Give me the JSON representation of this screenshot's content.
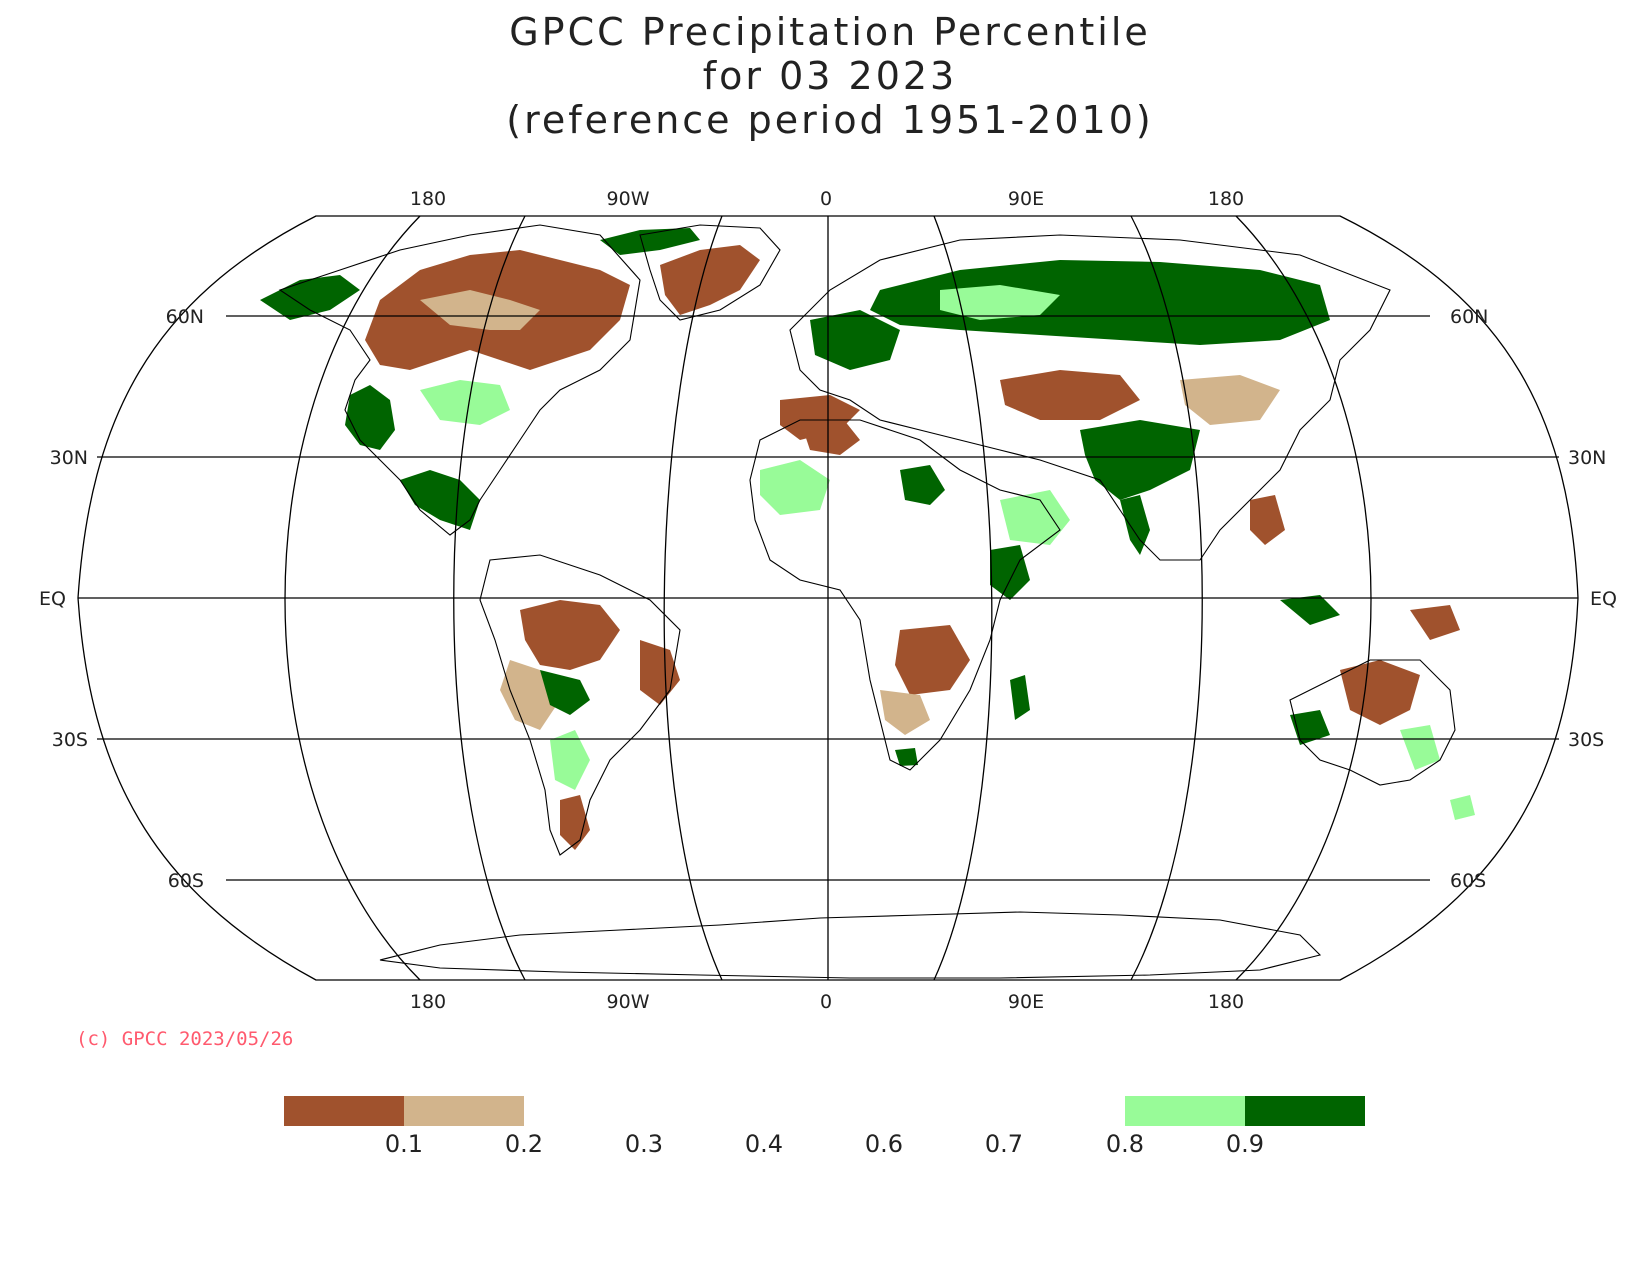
{
  "title": {
    "line1": "GPCC Precipitation Percentile",
    "line2": "for 03 2023",
    "line3": "(reference period 1951-2010)"
  },
  "axes": {
    "top_lon": [
      "180",
      "90W",
      "0",
      "90E",
      "180"
    ],
    "bottom_lon": [
      "180",
      "90W",
      "0",
      "90E",
      "180"
    ],
    "left_lat": [
      "60N",
      "30N",
      "EQ",
      "30S",
      "60S"
    ],
    "right_lat": [
      "60N",
      "30N",
      "EQ",
      "30S",
      "60S"
    ]
  },
  "credit": "(c) GPCC 2023/05/26",
  "legend": {
    "swatches": [
      {
        "name": "below-0.1",
        "color": "#a0522d"
      },
      {
        "name": "0.1-0.2",
        "color": "#d2b48c"
      },
      {
        "name": "0.8-0.9",
        "color": "#98fb98"
      },
      {
        "name": "above-0.9",
        "color": "#006400"
      }
    ],
    "ticks": [
      "0.1",
      "0.2",
      "0.3",
      "0.4",
      "0.6",
      "0.7",
      "0.8",
      "0.9"
    ]
  },
  "colors": {
    "very_dry": "#a0522d",
    "dry": "#d2b48c",
    "wet": "#98fb98",
    "very_wet": "#006400"
  }
}
